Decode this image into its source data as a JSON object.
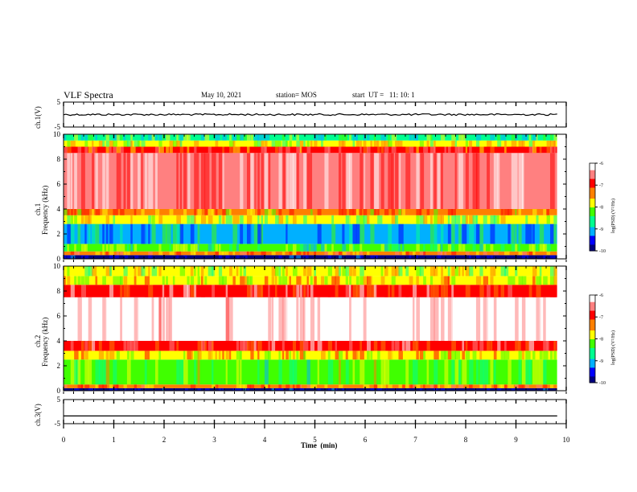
{
  "header": {
    "title": "VLF Spectra",
    "date": "May 10, 2021",
    "station": "station= MOS",
    "start_ut": "start  UT =   11: 10: 1"
  },
  "chart_data": [
    {
      "type": "line",
      "panel": "ch1-waveform",
      "ylabel": "ch.1(V)",
      "ylim": [
        -5,
        5
      ],
      "y_ticks": [
        "5",
        "-5"
      ],
      "series": [
        {
          "x": [
            0,
            9.82
          ],
          "y": [
            0,
            0
          ]
        }
      ],
      "grid": false
    },
    {
      "type": "heatmap",
      "panel": "ch1-spectrogram",
      "ylabel_line1": "ch.1",
      "ylabel_line2": "Frequency (kHz)",
      "xlim": [
        0,
        10
      ],
      "x_data_end": 9.82,
      "ylim": [
        0,
        10
      ],
      "y_ticks": [
        "0",
        "2",
        "4",
        "6",
        "8",
        "10"
      ],
      "bands": [
        {
          "f": [
            0.0,
            0.3
          ],
          "level": -10
        },
        {
          "f": [
            0.3,
            0.6
          ],
          "level": -7.2
        },
        {
          "f": [
            0.6,
            1.2
          ],
          "level": -8.3
        },
        {
          "f": [
            1.2,
            2.8
          ],
          "level": -8.9
        },
        {
          "f": [
            2.8,
            3.5
          ],
          "level": -8.0
        },
        {
          "f": [
            3.5,
            4.0
          ],
          "level": -7.4
        },
        {
          "f": [
            4.0,
            8.5
          ],
          "level": -6.4
        },
        {
          "f": [
            8.5,
            9.0
          ],
          "level": -7.0
        },
        {
          "f": [
            9.0,
            9.5
          ],
          "level": -7.9
        },
        {
          "f": [
            9.5,
            10.0
          ],
          "level": -8.5
        }
      ],
      "colorbar": {
        "label": "log(PSD) (V²/Hz)",
        "range": [
          -10,
          -6
        ],
        "ticks": [
          "-6",
          "-7",
          "-8",
          "-9",
          "-10"
        ]
      }
    },
    {
      "type": "heatmap",
      "panel": "ch2-spectrogram",
      "ylabel_line1": "ch.2",
      "ylabel_line2": "Frequency (kHz)",
      "xlim": [
        0,
        10
      ],
      "x_data_end": 9.82,
      "ylim": [
        0,
        10
      ],
      "y_ticks": [
        "0",
        "2",
        "4",
        "6",
        "8",
        "10"
      ],
      "bands": [
        {
          "f": [
            0.0,
            0.2
          ],
          "level": -10
        },
        {
          "f": [
            0.2,
            0.5
          ],
          "level": -7.3
        },
        {
          "f": [
            0.5,
            2.5
          ],
          "level": -8.2
        },
        {
          "f": [
            2.5,
            3.2
          ],
          "level": -7.6
        },
        {
          "f": [
            3.2,
            4.0
          ],
          "level": -6.8
        },
        {
          "f": [
            4.0,
            7.5
          ],
          "level": -6.0
        },
        {
          "f": [
            7.5,
            8.5
          ],
          "level": -6.7
        },
        {
          "f": [
            8.5,
            9.2
          ],
          "level": -7.6
        },
        {
          "f": [
            9.2,
            10.0
          ],
          "level": -8.0
        }
      ],
      "colorbar": {
        "label": "log(PSD) (V²/Hz)",
        "range": [
          -10,
          -6
        ],
        "ticks": [
          "-6",
          "-7",
          "-8",
          "-9",
          "-10"
        ]
      }
    },
    {
      "type": "line",
      "panel": "ch3-waveform",
      "ylabel": "ch.3(V)",
      "ylim": [
        -5,
        5
      ],
      "y_ticks": [
        "5",
        "-5"
      ],
      "series": [
        {
          "x": [
            0,
            9.82
          ],
          "y": [
            -1.8,
            -1.8
          ]
        }
      ],
      "grid": false
    }
  ],
  "xaxis": {
    "label": "Time  (min)",
    "ticks": [
      "0",
      "1",
      "2",
      "3",
      "4",
      "5",
      "6",
      "7",
      "8",
      "9",
      "10"
    ],
    "range": [
      0,
      10
    ]
  },
  "colors": {
    "scale": [
      "#000080",
      "#0000ff",
      "#00b0ff",
      "#00ff90",
      "#40ff00",
      "#ffff00",
      "#ff8000",
      "#ff0000",
      "#ff8080",
      "#ffffff"
    ]
  }
}
